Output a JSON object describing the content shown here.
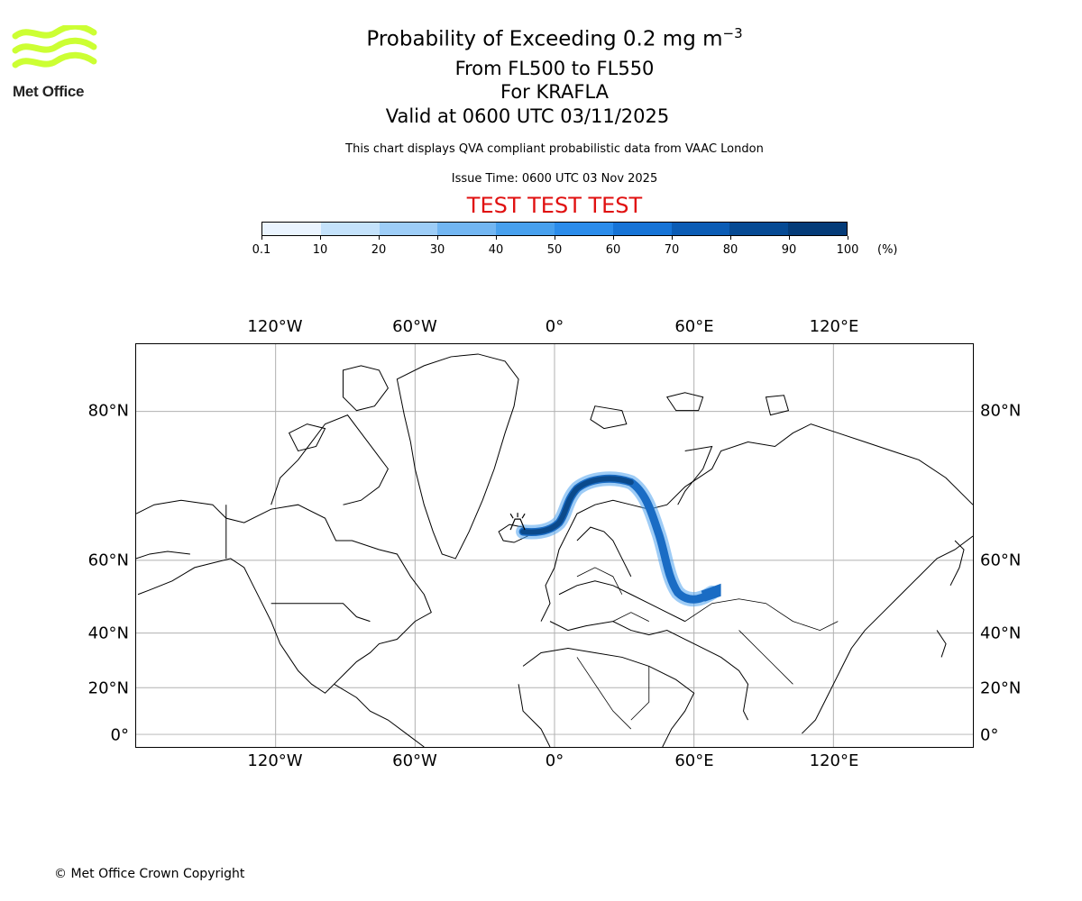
{
  "logo": {
    "text": "Met Office",
    "color": "#ccff33"
  },
  "title": {
    "main": "Probability of Exceeding 0.2 mg m",
    "main_sup": "−3",
    "levels": "From FL500 to FL550",
    "volcano": "For KRAFLA",
    "valid": "Valid at 0600 UTC 03/11/2025"
  },
  "description": "This chart displays QVA compliant probabilistic data from VAAC London",
  "issue_time": "Issue Time: 0600 UTC 03 Nov 2025",
  "test_banner": "TEST TEST TEST",
  "colorbar": {
    "ticks": [
      "0.1",
      "10",
      "20",
      "30",
      "40",
      "50",
      "60",
      "70",
      "80",
      "90",
      "100"
    ],
    "unit": "(%)",
    "colors": [
      "#eaf4ff",
      "#c4e2fb",
      "#9dcdf7",
      "#72b6f2",
      "#47a0ee",
      "#2b8ceb",
      "#1673d6",
      "#0b5cb5",
      "#064a94",
      "#043b78",
      "#022a57"
    ]
  },
  "map": {
    "lon_labels": [
      "120°W",
      "60°W",
      "0°",
      "60°E",
      "120°E"
    ],
    "lat_labels": [
      "80°N",
      "60°N",
      "40°N",
      "20°N",
      "0°"
    ],
    "plume_colors": {
      "dark": "#0b4a8c",
      "mid": "#1a6cc4",
      "light": "#4fa2ee"
    },
    "volcano_symbol": "volcano-icon"
  },
  "copyright": "© Met Office Crown Copyright"
}
